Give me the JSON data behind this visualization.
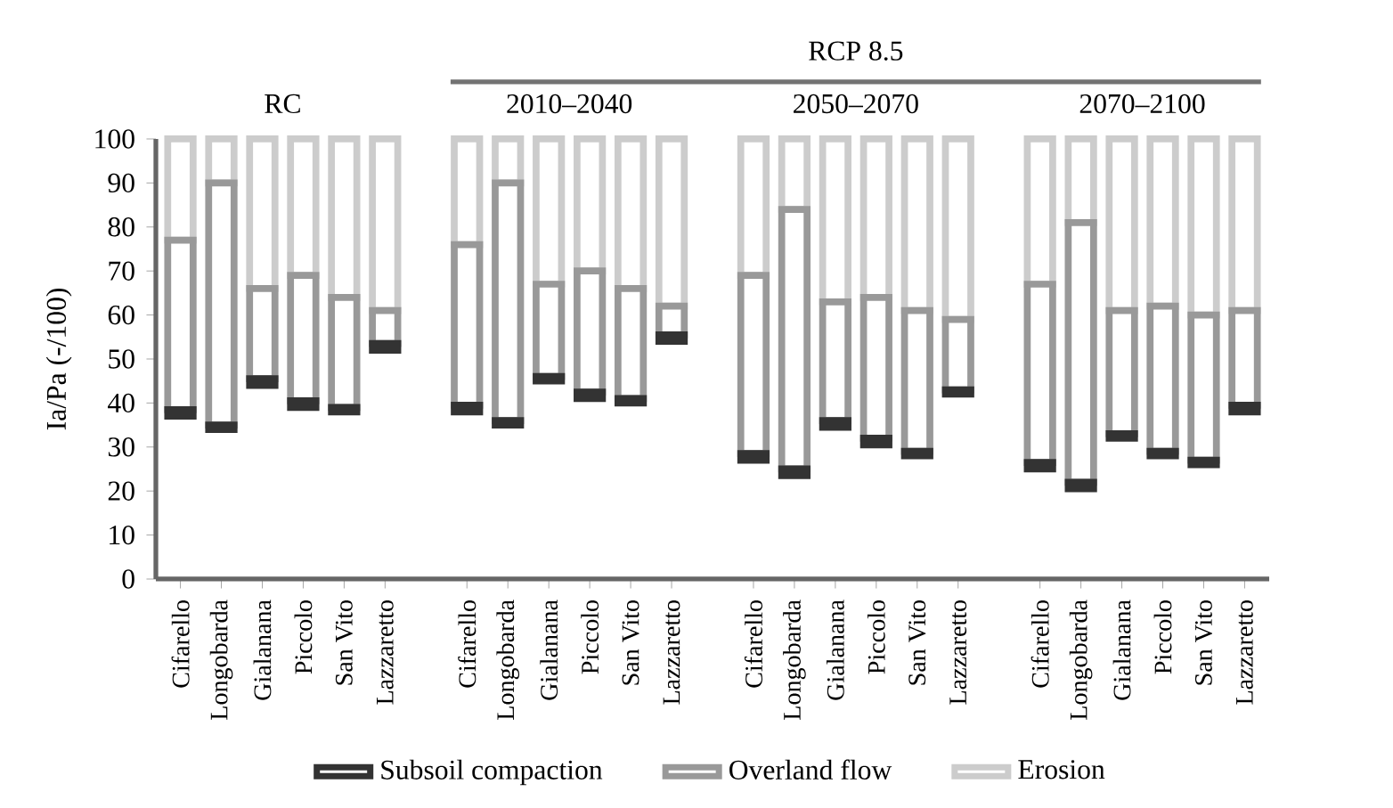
{
  "chart_data": {
    "type": "bar",
    "stacked": true,
    "ylabel": "Ia/Pa (-/100)",
    "categories": [
      "Cifarello",
      "Longobarda",
      "Gialanana",
      "Piccolo",
      "San Vito",
      "Lazzaretto",
      null,
      "Cifarello",
      "Longobarda",
      "Gialanana",
      "Piccolo",
      "San Vito",
      "Lazzaretto",
      null,
      "Cifarello",
      "Longobarda",
      "Gialanana",
      "Piccolo",
      "San Vito",
      "Lazzaretto",
      null,
      "Cifarello",
      "Longobarda",
      "Gialanana",
      "Piccolo",
      "San Vito",
      "Lazzaretto"
    ],
    "series": [
      {
        "name": "Subsoil compaction",
        "color": "#333333",
        "base": [
          37,
          34,
          44,
          39,
          38,
          52,
          null,
          38,
          35,
          45,
          41,
          40,
          54,
          null,
          27,
          23.5,
          34.5,
          30.5,
          28,
          42,
          null,
          25,
          20.5,
          32,
          28,
          26,
          38
        ],
        "values": [
          1.5,
          1,
          1.5,
          1.5,
          1,
          1.5,
          null,
          1.5,
          1,
          1,
          1.5,
          1,
          1.5,
          null,
          1.5,
          1.5,
          1.5,
          1.5,
          1,
          1,
          null,
          1.5,
          1.5,
          1,
          1,
          1,
          1.5
        ]
      },
      {
        "name": "Overland flow",
        "color": "#999999",
        "values": [
          38.5,
          55,
          20.5,
          28.5,
          25,
          7.5,
          null,
          36.5,
          54,
          21,
          27.5,
          25,
          6.5,
          null,
          40.5,
          59,
          27,
          32,
          32,
          16,
          null,
          40.5,
          59,
          28,
          33,
          33,
          21.5
        ]
      },
      {
        "name": "Erosion",
        "color": "#cccccc",
        "values": [
          23,
          10,
          34,
          31,
          36,
          39,
          null,
          24,
          10,
          33,
          30,
          34,
          38,
          null,
          31,
          16,
          37,
          36,
          39,
          41,
          null,
          33,
          19,
          39,
          38,
          40,
          39
        ]
      }
    ],
    "annotations": [
      "RC",
      "RCP 8.5",
      "2010–2040",
      "2050–2070",
      "2070–2100"
    ],
    "ylim": [
      0,
      100
    ],
    "yticks": [
      0,
      10,
      20,
      30,
      40,
      50,
      60,
      70,
      80,
      90,
      100
    ],
    "legend": "bottom",
    "grid": false
  }
}
